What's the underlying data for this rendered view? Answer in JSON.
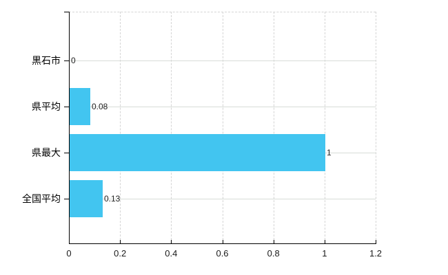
{
  "chart_data": {
    "type": "bar",
    "orientation": "horizontal",
    "title": "",
    "xlabel": "",
    "ylabel": "",
    "categories": [
      "黒石市",
      "県平均",
      "県最大",
      "全国平均"
    ],
    "values": [
      0,
      0.08,
      1,
      0.13
    ],
    "value_labels": [
      "0",
      "0.08",
      "1",
      "0.13"
    ],
    "x_ticks": [
      0,
      0.2,
      0.4,
      0.6,
      0.8,
      1,
      1.2
    ],
    "x_tick_labels": [
      "0",
      "0.2",
      "0.4",
      "0.6",
      "0.8",
      "1",
      "1.2"
    ],
    "xlim": [
      0,
      1.2
    ],
    "grid": "vertical-dashed-and-horizontal-solid-at-category-centers",
    "legend_position": "none",
    "colors": {
      "bar": "#42C5F0",
      "axis": "#000000",
      "vertical_gridline": "#D4D4D4",
      "horizontal_gridline": "#D7DCD7",
      "category_text": "#000000",
      "value_text": "#222222",
      "tick_label_text": "#1A1A1A",
      "background": "#FFFFFF"
    }
  }
}
